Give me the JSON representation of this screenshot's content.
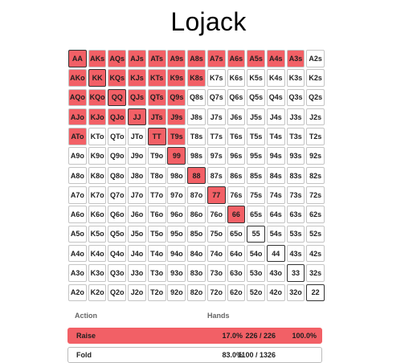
{
  "title": "Lojack",
  "grid": {
    "rows": [
      [
        "AA",
        "AKs",
        "AQs",
        "AJs",
        "ATs",
        "A9s",
        "A8s",
        "A7s",
        "A6s",
        "A5s",
        "A4s",
        "A3s",
        "A2s"
      ],
      [
        "AKo",
        "KK",
        "KQs",
        "KJs",
        "KTs",
        "K9s",
        "K8s",
        "K7s",
        "K6s",
        "K5s",
        "K4s",
        "K3s",
        "K2s"
      ],
      [
        "AQo",
        "KQo",
        "QQ",
        "QJs",
        "QTs",
        "Q9s",
        "Q8s",
        "Q7s",
        "Q6s",
        "Q5s",
        "Q4s",
        "Q3s",
        "Q2s"
      ],
      [
        "AJo",
        "KJo",
        "QJo",
        "JJ",
        "JTs",
        "J9s",
        "J8s",
        "J7s",
        "J6s",
        "J5s",
        "J4s",
        "J3s",
        "J2s"
      ],
      [
        "ATo",
        "KTo",
        "QTo",
        "JTo",
        "TT",
        "T9s",
        "T8s",
        "T7s",
        "T6s",
        "T5s",
        "T4s",
        "T3s",
        "T2s"
      ],
      [
        "A9o",
        "K9o",
        "Q9o",
        "J9o",
        "T9o",
        "99",
        "98s",
        "97s",
        "96s",
        "95s",
        "94s",
        "93s",
        "92s"
      ],
      [
        "A8o",
        "K8o",
        "Q8o",
        "J8o",
        "T8o",
        "98o",
        "88",
        "87s",
        "86s",
        "85s",
        "84s",
        "83s",
        "82s"
      ],
      [
        "A7o",
        "K7o",
        "Q7o",
        "J7o",
        "T7o",
        "97o",
        "87o",
        "77",
        "76s",
        "75s",
        "74s",
        "73s",
        "72s"
      ],
      [
        "A6o",
        "K6o",
        "Q6o",
        "J6o",
        "T6o",
        "96o",
        "86o",
        "76o",
        "66",
        "65s",
        "64s",
        "63s",
        "62s"
      ],
      [
        "A5o",
        "K5o",
        "Q5o",
        "J5o",
        "T5o",
        "95o",
        "85o",
        "75o",
        "65o",
        "55",
        "54s",
        "53s",
        "52s"
      ],
      [
        "A4o",
        "K4o",
        "Q4o",
        "J4o",
        "T4o",
        "94o",
        "84o",
        "74o",
        "64o",
        "54o",
        "44",
        "43s",
        "42s"
      ],
      [
        "A3o",
        "K3o",
        "Q3o",
        "J3o",
        "T3o",
        "93o",
        "83o",
        "73o",
        "63o",
        "53o",
        "43o",
        "33",
        "32s"
      ],
      [
        "A2o",
        "K2o",
        "Q2o",
        "J2o",
        "T2o",
        "92o",
        "82o",
        "72o",
        "62o",
        "52o",
        "42o",
        "32o",
        "22"
      ]
    ],
    "raise_hands": [
      "AA",
      "AKs",
      "AQs",
      "AJs",
      "ATs",
      "A9s",
      "A8s",
      "A7s",
      "A6s",
      "A5s",
      "A4s",
      "A3s",
      "AKo",
      "KK",
      "KQs",
      "KJs",
      "KTs",
      "K9s",
      "K8s",
      "AQo",
      "KQo",
      "QQ",
      "QJs",
      "QTs",
      "Q9s",
      "AJo",
      "KJo",
      "QJo",
      "JJ",
      "JTs",
      "J9s",
      "ATo",
      "TT",
      "T9s",
      "99",
      "88",
      "77",
      "66"
    ],
    "raise_color": "#f26066",
    "fold_color": "#ffffff"
  },
  "summary": {
    "header_action": "Action",
    "header_hands": "Hands",
    "actions": [
      {
        "name": "Raise",
        "percent": "17.0%",
        "combos": "226 / 226",
        "frequency": "100.0%"
      },
      {
        "name": "Fold",
        "percent": "83.0%",
        "combos": "1100 / 1326",
        "frequency": ""
      }
    ]
  }
}
